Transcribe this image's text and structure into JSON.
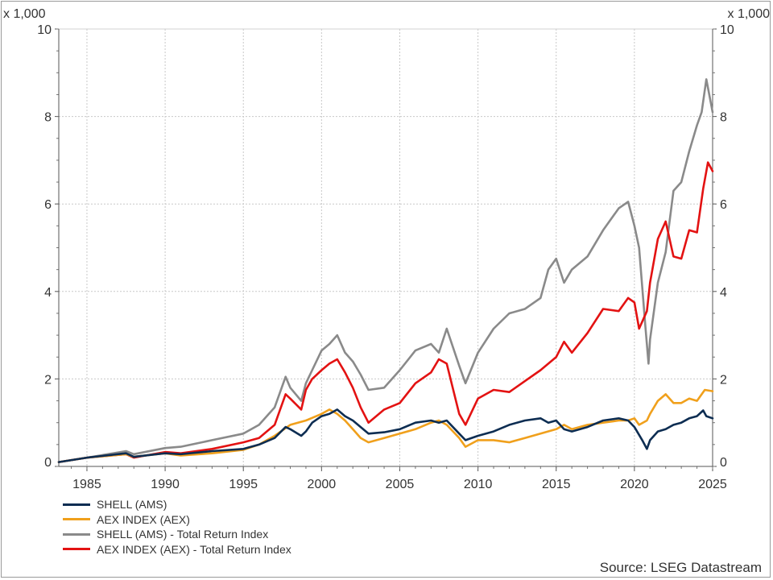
{
  "chart_data": {
    "type": "line",
    "units_label_left": "x 1,000",
    "units_label_right": "x 1,000",
    "xlim": [
      1983.2,
      2025
    ],
    "ylim": [
      0,
      10
    ],
    "x_ticks": [
      "1985",
      "1990",
      "1995",
      "2000",
      "2005",
      "2010",
      "2015",
      "2020",
      "2025"
    ],
    "y_ticks": [
      "0",
      "2",
      "4",
      "6",
      "8",
      "10"
    ],
    "grid": true,
    "legend_position": "bottom-left",
    "source": "Source: LSEG Datastream",
    "series": [
      {
        "name": "SHELL (AMS)",
        "color": "#0d2d52",
        "x": [
          1983.2,
          1985,
          1987.5,
          1988,
          1990,
          1991,
          1993,
          1995,
          1996,
          1997,
          1997.7,
          1998,
          1998.7,
          1999,
          1999.4,
          2000,
          2000.5,
          2001,
          2001.5,
          2002,
          2002.5,
          2003,
          2004,
          2005,
          2006,
          2007,
          2007.5,
          2008,
          2008.8,
          2009.2,
          2010,
          2011,
          2012,
          2013,
          2014,
          2014.5,
          2015,
          2015.5,
          2016,
          2017,
          2018,
          2019,
          2019.6,
          2020,
          2020.5,
          2020.8,
          2021,
          2021.5,
          2022,
          2022.5,
          2023,
          2023.5,
          2024,
          2024.4,
          2024.6,
          2025
        ],
        "y": [
          0.1,
          0.2,
          0.3,
          0.22,
          0.3,
          0.28,
          0.35,
          0.4,
          0.5,
          0.65,
          0.9,
          0.85,
          0.7,
          0.8,
          1.0,
          1.15,
          1.2,
          1.3,
          1.15,
          1.05,
          0.9,
          0.75,
          0.78,
          0.85,
          1.0,
          1.05,
          1.0,
          1.05,
          0.75,
          0.6,
          0.7,
          0.8,
          0.95,
          1.05,
          1.1,
          1.0,
          1.05,
          0.85,
          0.8,
          0.9,
          1.05,
          1.1,
          1.05,
          0.9,
          0.6,
          0.4,
          0.6,
          0.8,
          0.85,
          0.95,
          1.0,
          1.1,
          1.15,
          1.28,
          1.15,
          1.1
        ]
      },
      {
        "name": "AEX INDEX (AEX)",
        "color": "#f0a01c",
        "x": [
          1983.2,
          1985,
          1987.5,
          1988,
          1990,
          1991,
          1993,
          1995,
          1996,
          1997,
          1998,
          1999,
          2000,
          2000.5,
          2001,
          2001.5,
          2002,
          2002.5,
          2003,
          2004,
          2005,
          2006,
          2007,
          2007.5,
          2008,
          2008.8,
          2009.2,
          2010,
          2011,
          2012,
          2013,
          2014,
          2015,
          2015.5,
          2016,
          2017,
          2018,
          2019,
          2019.6,
          2020,
          2020.3,
          2020.8,
          2021,
          2021.5,
          2022,
          2022.5,
          2023,
          2023.5,
          2024,
          2024.5,
          2025
        ],
        "y": [
          0.1,
          0.2,
          0.28,
          0.22,
          0.3,
          0.25,
          0.3,
          0.38,
          0.5,
          0.7,
          0.95,
          1.05,
          1.2,
          1.3,
          1.2,
          1.05,
          0.85,
          0.65,
          0.55,
          0.65,
          0.75,
          0.85,
          1.0,
          1.05,
          0.95,
          0.65,
          0.45,
          0.6,
          0.6,
          0.55,
          0.65,
          0.75,
          0.85,
          0.95,
          0.85,
          0.95,
          1.0,
          1.05,
          1.05,
          1.1,
          0.95,
          1.05,
          1.2,
          1.5,
          1.65,
          1.45,
          1.45,
          1.55,
          1.5,
          1.75,
          1.72
        ]
      },
      {
        "name": "SHELL (AMS) - Total Return Index",
        "color": "#8a8a8a",
        "x": [
          1983.2,
          1985,
          1987.5,
          1988,
          1990,
          1991,
          1993,
          1995,
          1996,
          1997,
          1997.7,
          1998,
          1998.7,
          1999,
          1999.4,
          2000,
          2000.5,
          2001,
          2001.5,
          2002,
          2002.5,
          2003,
          2004,
          2005,
          2006,
          2007,
          2007.5,
          2008,
          2008.8,
          2009.2,
          2010,
          2011,
          2012,
          2013,
          2014,
          2014.5,
          2015,
          2015.5,
          2016,
          2017,
          2018,
          2019,
          2019.6,
          2020,
          2020.3,
          2020.7,
          2020.9,
          2021,
          2021.5,
          2022,
          2022.5,
          2023,
          2023.5,
          2024,
          2024.3,
          2024.6,
          2025
        ],
        "y": [
          0.1,
          0.2,
          0.35,
          0.28,
          0.42,
          0.45,
          0.6,
          0.75,
          0.95,
          1.35,
          2.05,
          1.8,
          1.5,
          1.9,
          2.2,
          2.65,
          2.8,
          3.0,
          2.6,
          2.4,
          2.1,
          1.75,
          1.8,
          2.2,
          2.65,
          2.8,
          2.6,
          3.15,
          2.3,
          1.9,
          2.6,
          3.15,
          3.5,
          3.6,
          3.85,
          4.5,
          4.75,
          4.2,
          4.5,
          4.8,
          5.4,
          5.9,
          6.05,
          5.5,
          5.0,
          3.2,
          2.35,
          2.9,
          4.2,
          4.9,
          6.3,
          6.5,
          7.2,
          7.8,
          8.1,
          8.85,
          8.1
        ]
      },
      {
        "name": "AEX INDEX (AEX) - Total Return Index",
        "color": "#e31212",
        "x": [
          1983.2,
          1985,
          1987.5,
          1988,
          1990,
          1991,
          1993,
          1995,
          1996,
          1997,
          1997.7,
          1998,
          1998.7,
          1999,
          1999.4,
          2000,
          2000.5,
          2001,
          2001.5,
          2002,
          2002.5,
          2003,
          2004,
          2005,
          2006,
          2007,
          2007.5,
          2008,
          2008.8,
          2009.2,
          2010,
          2011,
          2012,
          2013,
          2014,
          2014.5,
          2015,
          2015.5,
          2016,
          2017,
          2018,
          2019,
          2019.6,
          2020,
          2020.3,
          2020.8,
          2021,
          2021.5,
          2022,
          2022.5,
          2023,
          2023.5,
          2024,
          2024.4,
          2024.7,
          2025
        ],
        "y": [
          0.1,
          0.2,
          0.28,
          0.2,
          0.33,
          0.3,
          0.4,
          0.55,
          0.65,
          0.95,
          1.65,
          1.55,
          1.3,
          1.75,
          2.0,
          2.2,
          2.35,
          2.45,
          2.15,
          1.8,
          1.35,
          1.0,
          1.3,
          1.45,
          1.9,
          2.15,
          2.45,
          2.35,
          1.2,
          0.95,
          1.55,
          1.75,
          1.7,
          1.95,
          2.2,
          2.35,
          2.5,
          2.85,
          2.6,
          3.05,
          3.6,
          3.55,
          3.85,
          3.75,
          3.15,
          3.55,
          4.2,
          5.2,
          5.6,
          4.8,
          4.75,
          5.4,
          5.35,
          6.35,
          6.95,
          6.75
        ]
      }
    ]
  }
}
